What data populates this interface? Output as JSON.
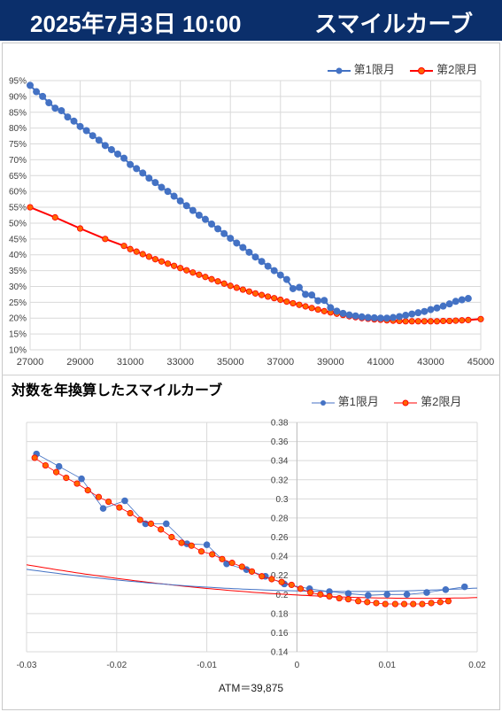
{
  "header": {
    "datetime": "2025年7月3日 10:00",
    "title": "スマイルカーブ"
  },
  "colors": {
    "series1": "#4472c4",
    "series2": "#ff0000",
    "header_bg": "#0b2f6b"
  },
  "chart_data": [
    {
      "type": "line",
      "title": "",
      "xlabel": "",
      "ylabel": "",
      "xlim": [
        27000,
        45000
      ],
      "ylim": [
        0.1,
        0.95
      ],
      "xticks": [
        "27000",
        "29000",
        "31000",
        "33000",
        "35000",
        "37000",
        "39000",
        "41000",
        "43000",
        "45000"
      ],
      "yticks": [
        "10%",
        "15%",
        "20%",
        "25%",
        "30%",
        "35%",
        "40%",
        "45%",
        "50%",
        "55%",
        "60%",
        "65%",
        "70%",
        "75%",
        "80%",
        "85%",
        "90%",
        "95%"
      ],
      "grid": true,
      "legend": "top-right",
      "series": [
        {
          "name": "第1限月",
          "x": [
            27000,
            27250,
            27500,
            27750,
            28000,
            28250,
            28500,
            28750,
            29000,
            29250,
            29500,
            29750,
            30000,
            30250,
            30500,
            30750,
            31000,
            31250,
            31500,
            31750,
            32000,
            32250,
            32500,
            32750,
            33000,
            33250,
            33500,
            33750,
            34000,
            34250,
            34500,
            34750,
            35000,
            35250,
            35500,
            35750,
            36000,
            36250,
            36500,
            36750,
            37000,
            37250,
            37500,
            37750,
            38000,
            38250,
            38500,
            38750,
            39000,
            39250,
            39500,
            39750,
            40000,
            40250,
            40500,
            40750,
            41000,
            41250,
            41500,
            41750,
            42000,
            42250,
            42500,
            42750,
            43000,
            43250,
            43500,
            43750,
            44000,
            44250,
            44500
          ],
          "y": [
            0.935,
            0.915,
            0.9,
            0.88,
            0.863,
            0.855,
            0.835,
            0.822,
            0.805,
            0.792,
            0.776,
            0.762,
            0.745,
            0.732,
            0.718,
            0.705,
            0.685,
            0.672,
            0.658,
            0.642,
            0.628,
            0.613,
            0.6,
            0.585,
            0.57,
            0.555,
            0.54,
            0.525,
            0.512,
            0.497,
            0.482,
            0.467,
            0.452,
            0.437,
            0.423,
            0.408,
            0.393,
            0.379,
            0.364,
            0.35,
            0.336,
            0.322,
            0.293,
            0.297,
            0.275,
            0.273,
            0.255,
            0.256,
            0.233,
            0.222,
            0.215,
            0.21,
            0.207,
            0.204,
            0.202,
            0.201,
            0.2,
            0.2,
            0.202,
            0.205,
            0.209,
            0.213,
            0.217,
            0.221,
            0.227,
            0.232,
            0.238,
            0.245,
            0.253,
            0.258,
            0.262
          ]
        },
        {
          "name": "第2限月",
          "x": [
            27000,
            28000,
            29000,
            30000,
            30750,
            31000,
            31250,
            31500,
            31750,
            32000,
            32250,
            32500,
            32750,
            33000,
            33250,
            33500,
            33750,
            34000,
            34250,
            34500,
            34750,
            35000,
            35250,
            35500,
            35750,
            36000,
            36250,
            36500,
            36750,
            37000,
            37250,
            37500,
            37750,
            38000,
            38250,
            38500,
            38750,
            39000,
            39250,
            39500,
            39750,
            40000,
            40250,
            40500,
            40750,
            41000,
            41250,
            41500,
            41750,
            42000,
            42250,
            42500,
            42750,
            43000,
            43250,
            43500,
            43750,
            44000,
            44250,
            44500,
            45000
          ],
          "y": [
            0.55,
            0.518,
            0.483,
            0.45,
            0.428,
            0.418,
            0.41,
            0.402,
            0.394,
            0.386,
            0.379,
            0.372,
            0.365,
            0.358,
            0.351,
            0.344,
            0.337,
            0.33,
            0.323,
            0.316,
            0.309,
            0.302,
            0.296,
            0.29,
            0.284,
            0.278,
            0.273,
            0.268,
            0.263,
            0.258,
            0.252,
            0.247,
            0.242,
            0.237,
            0.232,
            0.227,
            0.222,
            0.218,
            0.214,
            0.21,
            0.206,
            0.203,
            0.2,
            0.198,
            0.196,
            0.195,
            0.193,
            0.192,
            0.191,
            0.19,
            0.19,
            0.19,
            0.19,
            0.19,
            0.19,
            0.191,
            0.191,
            0.192,
            0.193,
            0.194,
            0.197
          ]
        }
      ]
    },
    {
      "type": "scatter",
      "title": "対数を年換算したスマイルカーブ",
      "xlabel": "",
      "ylabel": "",
      "xlim": [
        -0.03,
        0.02
      ],
      "ylim": [
        0.14,
        0.38
      ],
      "xticks": [
        "-0.03",
        "-0.02",
        "-0.01",
        "0",
        "0.01",
        "0.02"
      ],
      "yticks": [
        "0.14",
        "0.16",
        "0.18",
        "0.2",
        "0.22",
        "0.24",
        "0.26",
        "0.28",
        "0.3",
        "0.32",
        "0.34",
        "0.36",
        "0.38"
      ],
      "grid": true,
      "legend": "top-right",
      "series": [
        {
          "name": "第1限月",
          "x": [
            -0.0289,
            -0.0264,
            -0.0239,
            -0.0215,
            -0.0191,
            -0.0168,
            -0.0145,
            -0.0122,
            -0.01,
            -0.0078,
            -0.0056,
            -0.0035,
            -0.0014,
            0.0014,
            0.0036,
            0.0057,
            0.0079,
            0.01,
            0.0122,
            0.0144,
            0.0165,
            0.0186
          ],
          "y": [
            0.347,
            0.334,
            0.321,
            0.29,
            0.298,
            0.274,
            0.274,
            0.253,
            0.252,
            0.232,
            0.226,
            0.219,
            0.211,
            0.206,
            0.203,
            0.201,
            0.199,
            0.2,
            0.2,
            0.202,
            0.205,
            0.208
          ]
        },
        {
          "name": "第2限月",
          "x": [
            -0.0291,
            -0.0279,
            -0.0267,
            -0.0256,
            -0.0244,
            -0.0232,
            -0.022,
            -0.0209,
            -0.0197,
            -0.0185,
            -0.0174,
            -0.0162,
            -0.0151,
            -0.0139,
            -0.0128,
            -0.0117,
            -0.0106,
            -0.0094,
            -0.0083,
            -0.0072,
            -0.0061,
            -0.005,
            -0.0039,
            -0.0028,
            -0.0017,
            -0.0006,
            0.0004,
            0.0015,
            0.0026,
            0.0036,
            0.0047,
            0.0057,
            0.0068,
            0.0078,
            0.0088,
            0.0098,
            0.0109,
            0.0119,
            0.0129,
            0.0139,
            0.0149,
            0.0159,
            0.0168
          ],
          "y": [
            0.343,
            0.335,
            0.328,
            0.322,
            0.316,
            0.309,
            0.302,
            0.297,
            0.291,
            0.285,
            0.278,
            0.274,
            0.268,
            0.26,
            0.254,
            0.251,
            0.245,
            0.242,
            0.237,
            0.233,
            0.229,
            0.224,
            0.219,
            0.216,
            0.213,
            0.21,
            0.206,
            0.202,
            0.2,
            0.198,
            0.196,
            0.195,
            0.193,
            0.192,
            0.191,
            0.19,
            0.19,
            0.19,
            0.19,
            0.19,
            0.191,
            0.192,
            0.193
          ]
        }
      ]
    }
  ],
  "atm_label": "ATM＝39,875"
}
